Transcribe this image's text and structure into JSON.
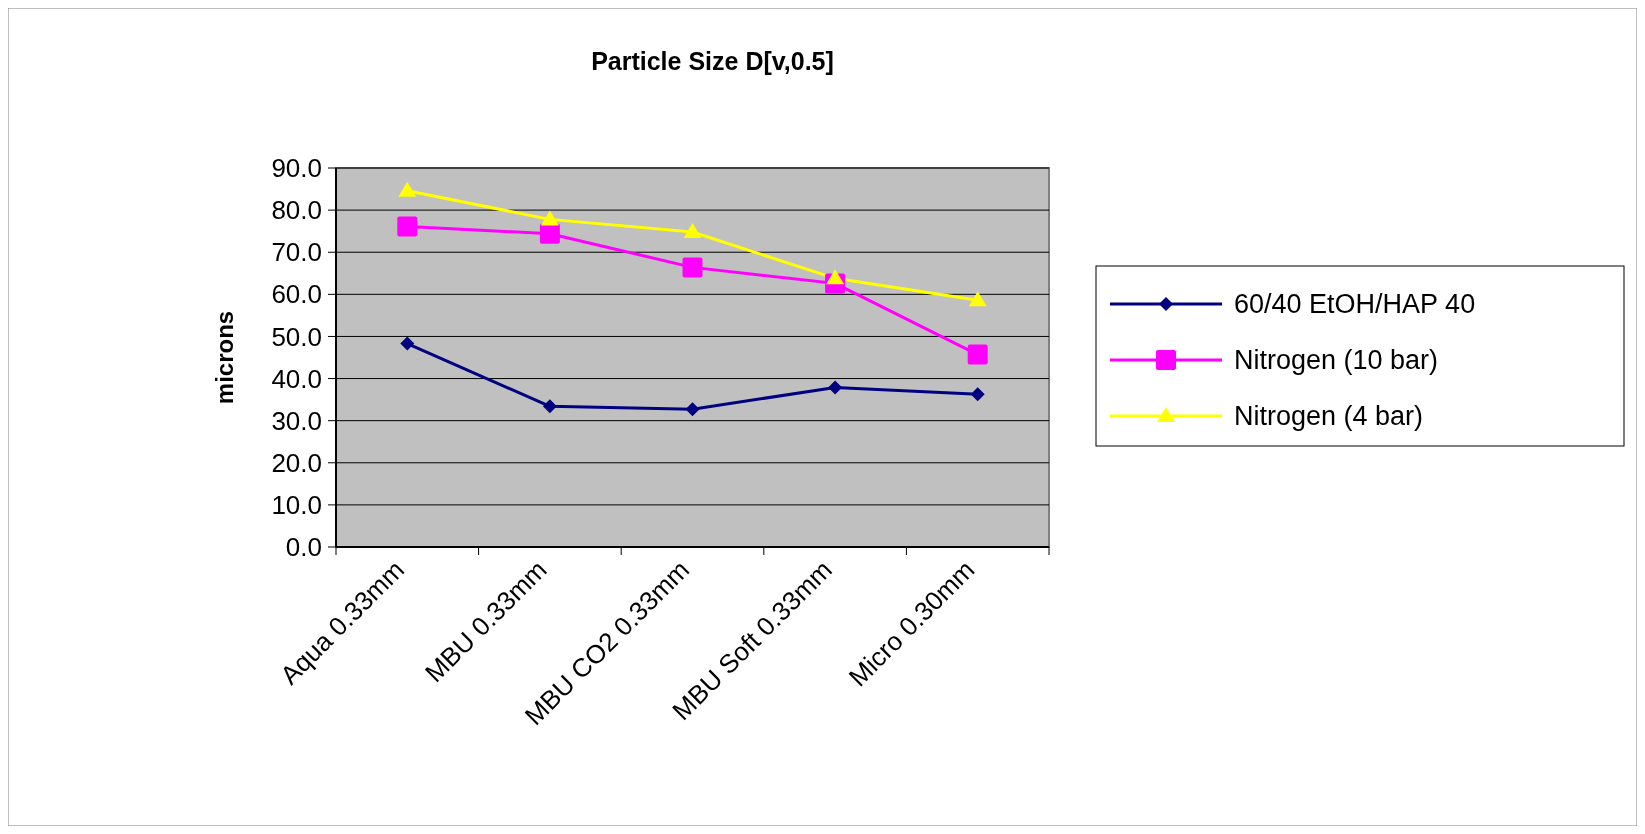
{
  "chart_data": {
    "type": "line",
    "title": "Particle Size D[v,0.5]",
    "ylabel": "microns",
    "categories": [
      "Aqua 0.33mm",
      "MBU 0.33mm",
      "MBU CO2 0.33mm",
      "MBU Soft 0.33mm",
      "Micro 0.30mm"
    ],
    "series": [
      {
        "name": "60/40 EtOH/HAP 40",
        "color": "#000080",
        "marker": "diamond",
        "values": [
          48.3,
          33.4,
          32.7,
          37.9,
          36.3
        ]
      },
      {
        "name": "Nitrogen (10 bar)",
        "color": "#ff00ff",
        "marker": "square",
        "values": [
          76.1,
          74.4,
          66.4,
          62.6,
          45.7
        ]
      },
      {
        "name": "Nitrogen (4 bar)",
        "color": "#ffff00",
        "marker": "triangle",
        "values": [
          84.6,
          77.8,
          74.8,
          63.8,
          58.6
        ]
      }
    ],
    "ylim": [
      0,
      90
    ],
    "yticks": [
      {
        "value": 0,
        "label": "0.0"
      },
      {
        "value": 10,
        "label": "10.0"
      },
      {
        "value": 20,
        "label": "20.0"
      },
      {
        "value": 30,
        "label": "30.0"
      },
      {
        "value": 40,
        "label": "40.0"
      },
      {
        "value": 50,
        "label": "50.0"
      },
      {
        "value": 60,
        "label": "60.0"
      },
      {
        "value": 70,
        "label": "70.0"
      },
      {
        "value": 80,
        "label": "80.0"
      },
      {
        "value": 90,
        "label": "90.0"
      }
    ],
    "grid": "y",
    "legend": "right"
  }
}
